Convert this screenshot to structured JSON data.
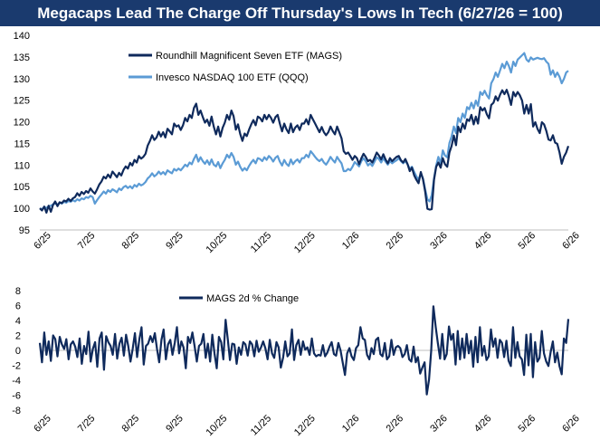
{
  "title": "Megacaps Lead The Charge Off Thursday's Lows In Tech (6/27/26 = 100)",
  "colors": {
    "title_bg": "#1a3a6e",
    "mags": "#0f2a5c",
    "qqq": "#5b9bd5",
    "axis": "#bfbfbf",
    "text": "#000000"
  },
  "chart_data": [
    {
      "type": "line",
      "title": "",
      "ylim": [
        95,
        140
      ],
      "yticks": [
        95,
        100,
        105,
        110,
        115,
        120,
        125,
        130,
        135,
        140
      ],
      "x_ticks": [
        "6/25",
        "7/25",
        "8/25",
        "9/25",
        "10/25",
        "11/25",
        "12/25",
        "1/26",
        "2/26",
        "3/26",
        "4/26",
        "5/26",
        "6/26"
      ],
      "legend_position": "top-left",
      "series": [
        {
          "name": "Roundhill Magnificent Seven ETF (MAGS)",
          "color": "#0f2a5c",
          "values": [
            100,
            99.5,
            100.4,
            99,
            100.6,
            99.2,
            100.8,
            101.6,
            100.5,
            101.4,
            101.2,
            101.8,
            101.6,
            102.2,
            101.7,
            102.3,
            102.6,
            103.5,
            102.9,
            103.8,
            103.3,
            104,
            103.6,
            104.6,
            103.9,
            103.4,
            104.4,
            105.5,
            106.2,
            107.3,
            106.9,
            107.8,
            107.1,
            108.5,
            107.9,
            107.2,
            108.2,
            107.6,
            108.9,
            109.7,
            109.2,
            110.5,
            109.9,
            111.2,
            110.6,
            112.1,
            111.5,
            111.9,
            112.6,
            114.5,
            115.6,
            116.9,
            115.8,
            116.4,
            117.7,
            116.6,
            117.6,
            116.4,
            118.4,
            117.8,
            117.1,
            119.6,
            118.9,
            119.2,
            118.1,
            119.2,
            120.9,
            120.1,
            121.6,
            120.9,
            123.2,
            124.2,
            121.6,
            122.6,
            121.1,
            119.8,
            120.5,
            119.1,
            121.2,
            118.9,
            117.1,
            118.9,
            116.6,
            118.6,
            119.8,
            121.6,
            120.5,
            122.6,
            121.3,
            118.2,
            119.4,
            117.2,
            115.6,
            117.3,
            116.7,
            118.2,
            119.4,
            120.4,
            119.2,
            121.2,
            120.9,
            120.1,
            121.6,
            120.6,
            121.6,
            120.9,
            119.8,
            121.1,
            121.6,
            119.6,
            117.8,
            119.6,
            118.3,
            117.4,
            119.6,
            117.6,
            118.7,
            119.2,
            118.1,
            119.6,
            119.6,
            120.6,
            119.4,
            121.6,
            120.6,
            119.6,
            118.6,
            117.6,
            118.8,
            117.6,
            116.9,
            117.6,
            118.9,
            117.9,
            117.1,
            118.9,
            117.6,
            116.2,
            113.2,
            112.6,
            112.9,
            112.1,
            111.2,
            112.1,
            111.6,
            110.2,
            111.6,
            112.6,
            111.9,
            110.9,
            111.2,
            110.6,
            111.7,
            112.9,
            112.2,
            111.3,
            112.5,
            111.3,
            110.4,
            111.6,
            110.9,
            111.4,
            111.9,
            112.1,
            111.1,
            110.6,
            111.4,
            110.2,
            108.6,
            109.4,
            107.6,
            106.6,
            105.8,
            108.4,
            106.7,
            103.9,
            99.9,
            99.7,
            99.8,
            106.6,
            109.6,
            110.6,
            109.4,
            111.6,
            110.2,
            109.6,
            112.9,
            114.4,
            116.8,
            114.6,
            118.9,
            117.6,
            119.6,
            118.4,
            120.6,
            120.2,
            121.6,
            119.4,
            121.2,
            119.6,
            123.4,
            122.6,
            123.2,
            121.7,
            120.8,
            123.9,
            124.4,
            125.9,
            124.9,
            126.3,
            127.3,
            126.4,
            127.4,
            125.9,
            123.9,
            126.9,
            125.9,
            126.9,
            126.1,
            124.9,
            121.9,
            123.9,
            121.9,
            124.1,
            118.9,
            119.9,
            118.4,
            117.4,
            119.9,
            119.4,
            117.9,
            115.9,
            115.7,
            116.9,
            115.2,
            114.9,
            112.9,
            110.3,
            111.9,
            112.9,
            114.4
          ]
        },
        {
          "name": "Invesco NASDAQ 100 ETF (QQQ)",
          "color": "#5b9bd5",
          "values": [
            100,
            99.8,
            100.3,
            100.1,
            100.4,
            100.6,
            100.9,
            101.1,
            100.9,
            101.3,
            101.1,
            101.5,
            101.3,
            101.7,
            101.5,
            101.9,
            101.6,
            102.1,
            101.8,
            102.3,
            102.1,
            102.6,
            102.4,
            102.9,
            102.6,
            101.1,
            101.9,
            102.6,
            103.2,
            103.9,
            103.4,
            104.2,
            103.8,
            104.4,
            104.1,
            103.7,
            104.6,
            104.2,
            104.9,
            105.2,
            104.7,
            105.1,
            104.6,
            105.4,
            105,
            105.7,
            105.3,
            105.6,
            106.1,
            106.9,
            107.4,
            108.1,
            107.4,
            107.8,
            108.5,
            107.9,
            108.4,
            107.8,
            108.8,
            108.4,
            108.1,
            109.1,
            108.7,
            109.2,
            108.8,
            109.4,
            110.1,
            109.7,
            110.6,
            110.2,
            111.4,
            112.4,
            110.8,
            111.8,
            110.9,
            110.3,
            111.1,
            110.1,
            111.3,
            110.1,
            109.7,
            110.7,
            109.3,
            110.4,
            111.2,
            112.4,
            111.7,
            112.8,
            111.9,
            110.1,
            110.8,
            109.6,
            108.7,
            109.3,
            108.8,
            109.8,
            110.6,
            111.2,
            110.4,
            111.6,
            111.4,
            110.9,
            111.8,
            111.2,
            112.1,
            111.6,
            110.8,
            111.7,
            112.1,
            110.8,
            109.9,
            111.2,
            110.3,
            109.8,
            111.3,
            110.2,
            110.9,
            111.3,
            110.6,
            111.6,
            111.6,
            112.4,
            111.8,
            113.2,
            112.6,
            111.9,
            111.3,
            110.9,
            111.4,
            110.6,
            110.1,
            110.9,
            111.9,
            111.2,
            110.6,
            111.9,
            111.1,
            110.4,
            108.6,
            108.6,
            109.1,
            108.8,
            109.6,
            110.7,
            110.2,
            109.7,
            110.9,
            111.6,
            110.9,
            109.9,
            110.4,
            109.8,
            110.8,
            111.8,
            111.4,
            110.6,
            111.6,
            110.8,
            110.1,
            110.9,
            110.4,
            110.8,
            111.1,
            111.6,
            110.9,
            110.4,
            110.9,
            110.2,
            109.1,
            109.6,
            108.4,
            107.4,
            106.6,
            108.1,
            106.9,
            104.4,
            102.1,
            101.6,
            103.1,
            106.9,
            109.9,
            111.9,
            110.4,
            113.4,
            112.2,
            111.8,
            115.1,
            116.6,
            118.9,
            117.4,
            120.9,
            119.9,
            121.9,
            120.9,
            123.4,
            122.9,
            124.4,
            123.1,
            124.9,
            123.7,
            126.9,
            126.2,
            127.2,
            126.1,
            125.4,
            128.9,
            129.9,
            131.4,
            130.4,
            131.9,
            133.4,
            132.4,
            133.9,
            132.9,
            131.4,
            133.9,
            132.9,
            134.4,
            134.9,
            135.4,
            135.9,
            134.4,
            133.9,
            134.9,
            134.4,
            134.6,
            134.8,
            134.6,
            134.5,
            134.7,
            133.9,
            133.4,
            130.9,
            131.9,
            130.4,
            131.4,
            130.4,
            128.9,
            129.9,
            131.4,
            131.8
          ]
        }
      ]
    },
    {
      "type": "line",
      "title": "",
      "ylim": [
        -8,
        8
      ],
      "yticks": [
        -8,
        -6,
        -4,
        -2,
        0,
        2,
        4,
        6,
        8
      ],
      "x_ticks": [
        "6/25",
        "7/25",
        "8/25",
        "9/25",
        "10/25",
        "11/25",
        "12/25",
        "1/26",
        "2/26",
        "3/26",
        "4/26",
        "5/26",
        "6/26"
      ],
      "legend_position": "top-left",
      "series": [
        {
          "name": "MAGS 2d % Change",
          "color": "#0f2a5c",
          "values": [
            1,
            -1.6,
            2.4,
            -0.6,
            1.2,
            -1.4,
            2,
            1.5,
            -0.8,
            1.8,
            0.8,
            0.2,
            1.5,
            -1.2,
            0.8,
            1.2,
            0.5,
            -0.9,
            1.6,
            -1.8,
            0.6,
            -0.5,
            2.5,
            -1.5,
            0.2,
            1.1,
            -2.2,
            1.6,
            2.4,
            -2.6,
            1.9,
            1.1,
            0.6,
            -0.6,
            2.2,
            -1.1,
            0.9,
            1.7,
            -0.7,
            2.1,
            0.6,
            -1.5,
            0.2,
            2.3,
            -0.9,
            1.5,
            3.1,
            -1.9,
            0.6,
            0.9,
            1.9,
            1.1,
            2.3,
            0.2,
            -1.6,
            1.4,
            2.8,
            -1.2,
            0.8,
            1.4,
            -0.6,
            1,
            3.1,
            -0.4,
            1.2,
            0.4,
            -2.4,
            1.8,
            1,
            2.4,
            0.6,
            -1.5,
            0.6,
            0.9,
            2.2,
            -1,
            0.9,
            -1.5,
            2.1,
            -0.4,
            -2.4,
            1.8,
            1.1,
            -1.2,
            4.1,
            1.5,
            -1.3,
            0.9,
            0.8,
            -1.8,
            0.4,
            -0.6,
            1.1,
            0.8,
            -0.7,
            1.2,
            0.8,
            -0.8,
            1.3,
            -0.2,
            0.4,
            1.2,
            0.3,
            -1.2,
            1.4,
            -0.4,
            -1,
            1.1,
            0.4,
            -2.3,
            -1,
            1.2,
            -0.8,
            -0.4,
            2.8,
            -1.3,
            0.7,
            1.4,
            -0.6,
            1.2,
            0.1,
            0.4,
            -0.6,
            1.6,
            -0.4,
            -0.8,
            -0.6,
            -0.7,
            0.7,
            -0.8,
            -0.3,
            0.5,
            1.1,
            -0.5,
            -0.7,
            1,
            0,
            -1.7,
            -3.3,
            -0.4,
            0.3,
            -0.8,
            -1.3,
            0.3,
            0.7,
            3.1,
            1.6,
            1.4,
            -0.6,
            -1.2,
            0.3,
            -0.5,
            1.4,
            1.7,
            -0.5,
            -0.8,
            1,
            -1.2,
            -0.8,
            1.4,
            -0.6,
            0.4,
            0.6,
            0.3,
            -0.9,
            -0.5,
            0.7,
            -1.2,
            -1.5,
            0.5,
            -1.6,
            -0.9,
            -3.1,
            -2.3,
            -1.6,
            -5.9,
            -3.9,
            0,
            5.9,
            3.2,
            1,
            -1.1,
            2.2,
            -1.2,
            -0.5,
            3.2,
            1.4,
            2.2,
            -1.9,
            2.6,
            -1.2,
            1.6,
            -1,
            2.2,
            -0.4,
            1.3,
            -2.2,
            1.8,
            -1.6,
            3.1,
            -0.7,
            0.6,
            -1.3,
            -0.8,
            2.8,
            0.5,
            1.6,
            -1,
            1.4,
            1,
            -0.9,
            1.3,
            -1.4,
            -2.1,
            3.1,
            -1,
            1.1,
            -0.8,
            -1.2,
            -3.3,
            2.1,
            -2,
            2.2,
            -3.6,
            1.1,
            -1.5,
            -1,
            2.6,
            -0.4,
            -1.5,
            -2.1,
            -0.2,
            1.2,
            -1.6,
            -0.3,
            -2.1,
            -3.2,
            1.6,
            1,
            4.2
          ]
        }
      ]
    }
  ]
}
